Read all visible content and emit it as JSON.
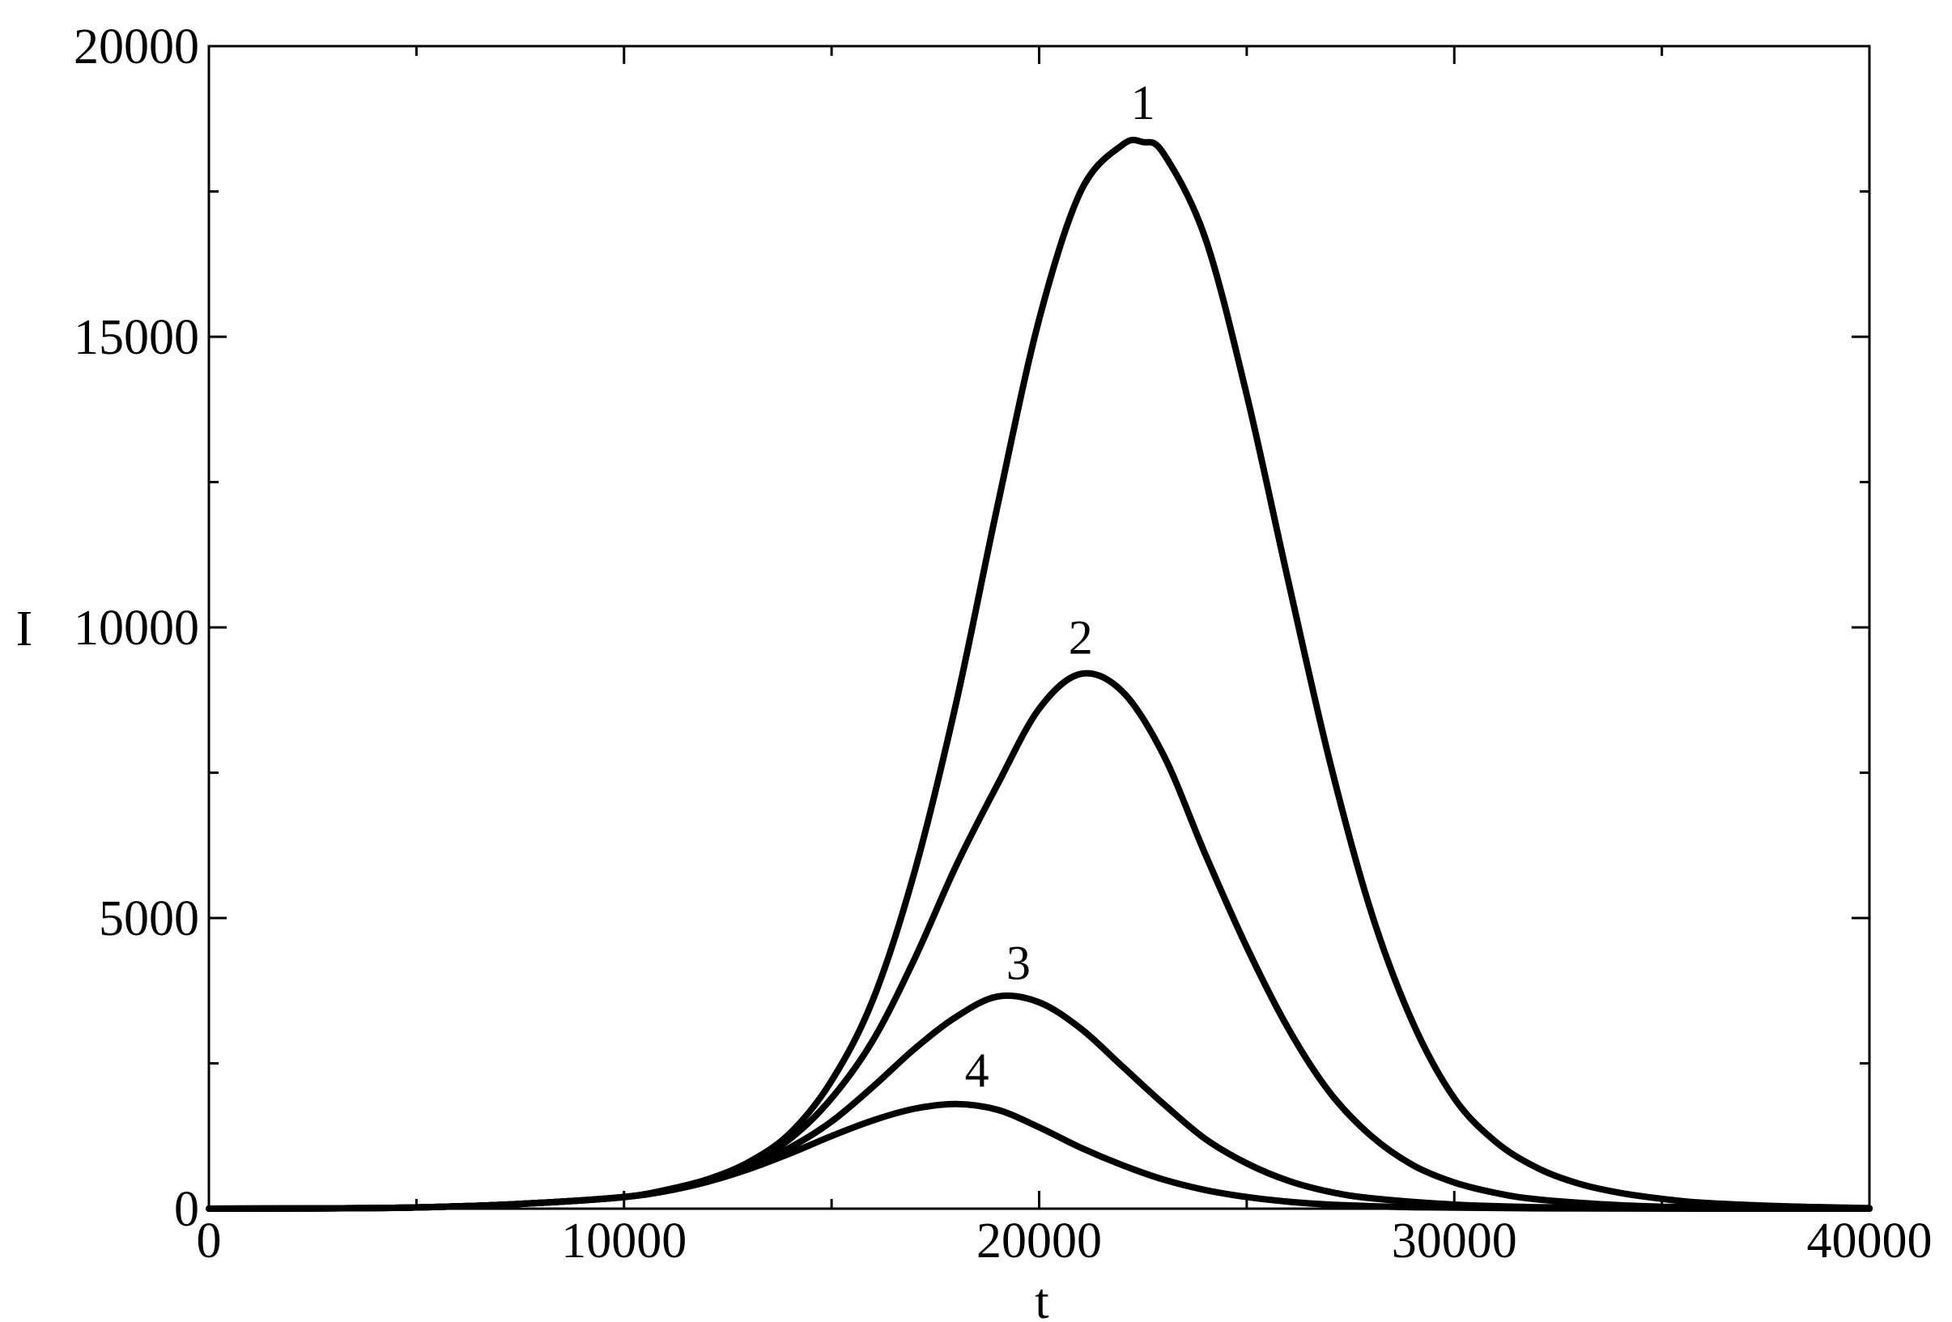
{
  "chart_data": {
    "type": "line",
    "title": "",
    "xlabel": "t",
    "ylabel": "I",
    "xlim": [
      0,
      40000
    ],
    "ylim": [
      0,
      20000
    ],
    "x_major_ticks": [
      0,
      10000,
      20000,
      30000,
      40000
    ],
    "x_minor_ticks": [
      5000,
      15000,
      25000,
      35000
    ],
    "y_major_ticks": [
      0,
      5000,
      10000,
      15000,
      20000
    ],
    "y_minor_ticks": [
      2500,
      7500,
      12500,
      17500
    ],
    "x_tick_labels": [
      "0",
      "10000",
      "20000",
      "30000",
      "40000"
    ],
    "y_tick_labels": [
      "0",
      "5000",
      "10000",
      "15000",
      "20000"
    ],
    "grid": false,
    "line_color": "#000000",
    "series": [
      {
        "name": "1",
        "x": [
          0,
          4000,
          6000,
          8000,
          10000,
          11000,
          12000,
          13000,
          14000,
          15000,
          16000,
          17000,
          18000,
          19000,
          20000,
          21000,
          22000,
          22500,
          23000,
          24000,
          25000,
          26000,
          27000,
          28000,
          29000,
          30000,
          31000,
          32000,
          33000,
          34000,
          35000,
          36000,
          38000,
          40000
        ],
        "y": [
          0,
          10,
          40,
          100,
          200,
          320,
          500,
          800,
          1300,
          2200,
          3600,
          5800,
          8700,
          12100,
          15300,
          17500,
          18300,
          18350,
          18150,
          16700,
          14000,
          10800,
          7700,
          5100,
          3200,
          1900,
          1150,
          700,
          430,
          270,
          170,
          100,
          40,
          10
        ]
      },
      {
        "name": "2",
        "x": [
          0,
          4000,
          6000,
          8000,
          10000,
          11000,
          12000,
          13000,
          14000,
          15000,
          16000,
          17000,
          18000,
          19000,
          20000,
          21000,
          22000,
          23000,
          24000,
          25000,
          26000,
          27000,
          28000,
          29000,
          30000,
          31000,
          32000,
          34000,
          36000,
          40000
        ],
        "y": [
          0,
          10,
          40,
          100,
          200,
          320,
          500,
          780,
          1200,
          1900,
          2900,
          4300,
          5900,
          7300,
          8600,
          9200,
          8900,
          7800,
          6100,
          4500,
          3100,
          2000,
          1250,
          750,
          450,
          270,
          160,
          60,
          20,
          0
        ]
      },
      {
        "name": "3",
        "x": [
          0,
          4000,
          6000,
          8000,
          10000,
          11000,
          12000,
          13000,
          14000,
          15000,
          16000,
          17000,
          18000,
          19000,
          20000,
          21000,
          22000,
          23000,
          24000,
          25000,
          26000,
          27000,
          28000,
          30000,
          32000,
          35000,
          40000
        ],
        "y": [
          0,
          10,
          40,
          100,
          200,
          310,
          480,
          720,
          1050,
          1500,
          2100,
          2750,
          3300,
          3650,
          3550,
          3100,
          2450,
          1800,
          1200,
          780,
          480,
          290,
          180,
          70,
          25,
          5,
          0
        ]
      },
      {
        "name": "4",
        "x": [
          0,
          4000,
          6000,
          8000,
          10000,
          11000,
          12000,
          13000,
          14000,
          15000,
          16000,
          17000,
          18000,
          19000,
          20000,
          21000,
          22000,
          23000,
          24000,
          25000,
          26000,
          27000,
          29000,
          32000,
          36000,
          40000
        ],
        "y": [
          0,
          10,
          40,
          100,
          200,
          300,
          460,
          680,
          950,
          1250,
          1520,
          1720,
          1800,
          1700,
          1400,
          1050,
          750,
          500,
          320,
          200,
          120,
          70,
          25,
          5,
          0,
          0
        ]
      }
    ],
    "curve_labels": [
      {
        "text": "1",
        "x": 22500,
        "y": 18750
      },
      {
        "text": "2",
        "x": 21000,
        "y": 9550
      },
      {
        "text": "3",
        "x": 19500,
        "y": 3950
      },
      {
        "text": "4",
        "x": 18500,
        "y": 2100
      }
    ]
  }
}
